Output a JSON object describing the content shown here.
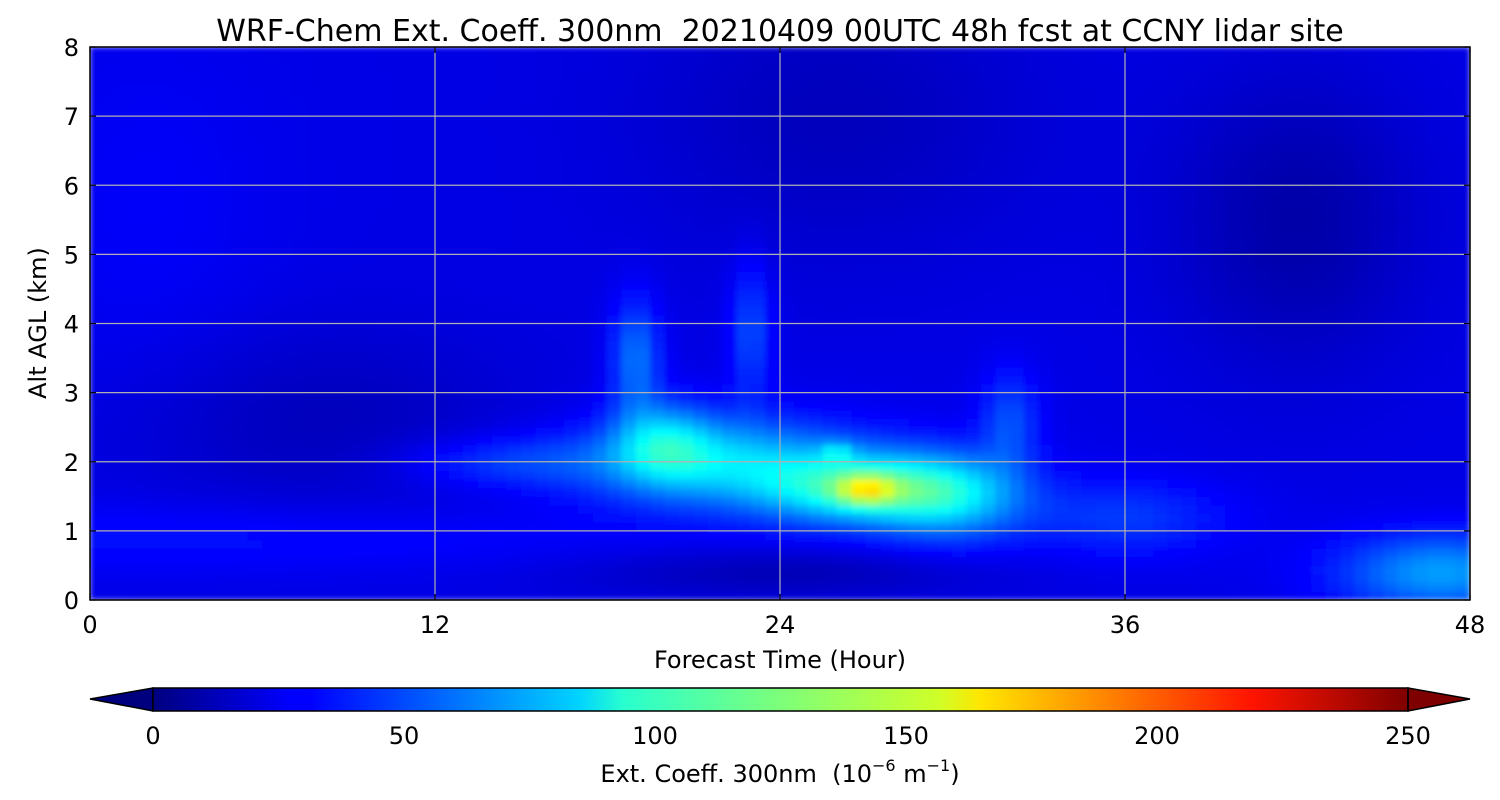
{
  "chart_data": {
    "type": "heatmap",
    "title": "WRF-Chem Ext. Coeff. 300nm  20210409 00UTC 48h fcst at CCNY lidar site",
    "xlabel": "Forecast Time (Hour)",
    "ylabel": "Alt AGL (km)",
    "xlim": [
      0,
      48
    ],
    "ylim": [
      0,
      8
    ],
    "xticks": [
      "0",
      "12",
      "24",
      "36",
      "48"
    ],
    "yticks": [
      "0",
      "1",
      "2",
      "3",
      "4",
      "5",
      "6",
      "7",
      "8"
    ],
    "grid": true,
    "colorbar": {
      "label": "Ext. Coeff. 300nm  (10",
      "label_exp": "−6",
      "label_unit": " m",
      "label_unit_exp": "−1",
      "label_close": ")",
      "range": [
        0,
        250
      ],
      "ticks": [
        "0",
        "50",
        "100",
        "150",
        "200",
        "250"
      ],
      "colormap": "jet",
      "extend": "both"
    },
    "background_value": 25,
    "features": [
      {
        "hour": 22,
        "alt": 2.0,
        "sh": 3.5,
        "sa": 0.45,
        "value": 55
      },
      {
        "hour": 27,
        "alt": 1.6,
        "sh": 2.5,
        "sa": 0.35,
        "value": 70
      },
      {
        "hour": 30,
        "alt": 1.5,
        "sh": 1.8,
        "sa": 0.45,
        "value": 45
      },
      {
        "hour": 20,
        "alt": 2.3,
        "sh": 1.2,
        "sa": 0.4,
        "value": 40
      },
      {
        "hour": 19,
        "alt": 3.5,
        "sh": 0.6,
        "sa": 0.6,
        "value": 35
      },
      {
        "hour": 23,
        "alt": 3.9,
        "sh": 0.5,
        "sa": 0.7,
        "value": 25
      },
      {
        "hour": 32,
        "alt": 2.6,
        "sh": 0.7,
        "sa": 0.5,
        "value": 25
      },
      {
        "hour": 14.5,
        "alt": 2.0,
        "sh": 2.5,
        "sa": 0.25,
        "value": 20
      },
      {
        "hour": 36,
        "alt": 1.2,
        "sh": 2.5,
        "sa": 0.4,
        "value": 20
      },
      {
        "hour": 27,
        "alt": 1.6,
        "sh": 0.7,
        "sa": 0.15,
        "value": 50
      },
      {
        "hour": 26,
        "alt": 2.15,
        "sh": 0.4,
        "sa": 0.1,
        "value": 25
      },
      {
        "hour": 47,
        "alt": 0.4,
        "sh": 2.5,
        "sa": 0.4,
        "value": 45
      },
      {
        "hour": 5,
        "alt": 0.9,
        "sh": 10,
        "sa": 0.35,
        "value": 10
      },
      {
        "hour": 24,
        "alt": 0.4,
        "sh": 5,
        "sa": 0.25,
        "value": -12
      },
      {
        "hour": 42,
        "alt": 5.5,
        "sh": 3,
        "sa": 1.5,
        "value": -15
      },
      {
        "hour": 26,
        "alt": 7.0,
        "sh": 5,
        "sa": 1.5,
        "value": -10
      },
      {
        "hour": 8,
        "alt": 2.6,
        "sh": 5,
        "sa": 1.0,
        "value": -10
      },
      {
        "hour": 2,
        "alt": 5.5,
        "sh": 3,
        "sa": 2.0,
        "value": 5
      }
    ]
  }
}
